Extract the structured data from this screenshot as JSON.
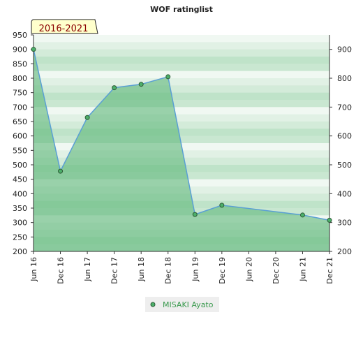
{
  "chart_data": {
    "type": "area",
    "title": "WOF ratinglist",
    "period_label": "2016-2021",
    "x_labels": [
      "Jun 16",
      "Dec 16",
      "Jun 17",
      "Dec 17",
      "Jun 18",
      "Dec 18",
      "Jun 19",
      "Dec 19",
      "Jun 20",
      "Dec 20",
      "Jun 21",
      "Dec 21"
    ],
    "ylim": [
      200,
      950
    ],
    "left_ticks": [
      200,
      250,
      300,
      350,
      400,
      450,
      500,
      550,
      600,
      650,
      700,
      750,
      800,
      850,
      900,
      950
    ],
    "right_ticks": [
      200,
      300,
      400,
      500,
      600,
      700,
      800,
      900
    ],
    "grid": true,
    "legend_position": "bottom",
    "series": [
      {
        "name": "MISAKI Ayato",
        "points": [
          {
            "x": 0,
            "y": 900
          },
          {
            "x": 1,
            "y": 478
          },
          {
            "x": 2,
            "y": 664
          },
          {
            "x": 3,
            "y": 767
          },
          {
            "x": 4,
            "y": 779
          },
          {
            "x": 5,
            "y": 805
          },
          {
            "x": 6,
            "y": 328
          },
          {
            "x": 7,
            "y": 360
          },
          {
            "x": 10,
            "y": 326
          },
          {
            "x": 11,
            "y": 308
          }
        ]
      }
    ],
    "colors": {
      "fill": "#5fb87a",
      "line": "#5a9fd4",
      "marker": "#4caf6a",
      "marker_edge": "#2d5a36",
      "band_light": "#f0f8f2",
      "band_dark": "#bfe3c9",
      "legend_bg": "#eeeeee",
      "legend_text": "#3a9a4e",
      "period_bg": "#ffffcc"
    }
  }
}
